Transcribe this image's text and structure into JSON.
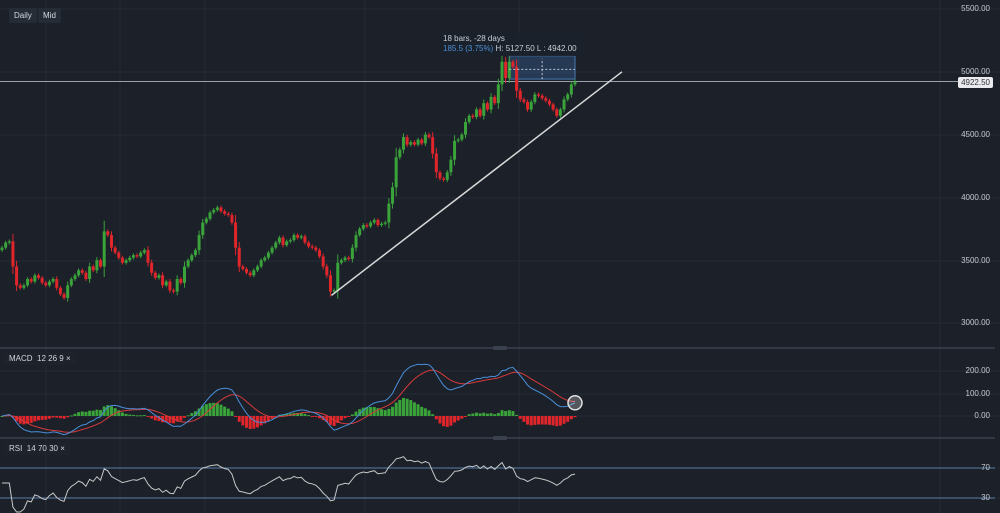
{
  "toolbar": {
    "timeframe": "Daily",
    "price_type": "Mid"
  },
  "price_axis": {
    "ticks": [
      "5500.00",
      "5000.00",
      "4500.00",
      "4000.00",
      "3500.00",
      "3000.00"
    ],
    "current_price": "4922.50"
  },
  "macd": {
    "label": "MACD",
    "params": [
      "12",
      "26",
      "9"
    ],
    "close": "×",
    "ticks": [
      "200.00",
      "100.00",
      "0.00"
    ]
  },
  "rsi": {
    "label": "RSI",
    "params": [
      "14",
      "70",
      "30"
    ],
    "close": "×",
    "ticks": [
      "70",
      "30"
    ]
  },
  "measure": {
    "line1": "18 bars, -28 days",
    "change": "185.5 (3.75%)",
    "hl": "H: 5127.50 L : 4942.00"
  },
  "colors": {
    "up": "#3aa33a",
    "down": "#e0262b",
    "background": "#1b2029",
    "macd_line": "#4a8fd8",
    "signal_line": "#d83a3a",
    "rsi_line": "#c8c8c8",
    "rsi_bands": "#5b7fa6",
    "trendline": "#d8d8d8"
  },
  "chart_data": {
    "type": "candlestick",
    "ylim": [
      2800,
      5500
    ],
    "closes": [
      3600,
      3640,
      3650,
      3450,
      3300,
      3280,
      3300,
      3350,
      3330,
      3380,
      3360,
      3320,
      3300,
      3330,
      3350,
      3280,
      3230,
      3200,
      3300,
      3350,
      3380,
      3420,
      3400,
      3350,
      3450,
      3420,
      3500,
      3450,
      3730,
      3700,
      3600,
      3560,
      3520,
      3480,
      3500,
      3520,
      3540,
      3530,
      3560,
      3580,
      3480,
      3400,
      3360,
      3380,
      3300,
      3330,
      3260,
      3250,
      3350,
      3320,
      3450,
      3500,
      3540,
      3580,
      3700,
      3800,
      3830,
      3880,
      3900,
      3920,
      3890,
      3870,
      3860,
      3800,
      3600,
      3450,
      3430,
      3400,
      3380,
      3420,
      3450,
      3500,
      3520,
      3560,
      3600,
      3640,
      3680,
      3620,
      3650,
      3660,
      3700,
      3680,
      3690,
      3640,
      3610,
      3600,
      3580,
      3530,
      3450,
      3380,
      3250,
      3260,
      3480,
      3500,
      3520,
      3510,
      3600,
      3700,
      3750,
      3780,
      3770,
      3800,
      3820,
      3780,
      3790,
      3800,
      3950,
      4080,
      4320,
      4380,
      4480,
      4420,
      4440,
      4420,
      4460,
      4430,
      4500,
      4480,
      4350,
      4200,
      4150,
      4140,
      4200,
      4300,
      4450,
      4460,
      4500,
      4600,
      4650,
      4640,
      4700,
      4650,
      4750,
      4700,
      4800,
      4750,
      4900,
      5080,
      4950,
      5080,
      5040,
      4850,
      4780,
      4760,
      4700,
      4760,
      4820,
      4810,
      4790,
      4770,
      4740,
      4700,
      4650,
      4700,
      4780,
      4820,
      4900,
      4922.5
    ],
    "trendline": {
      "start_price": 3220,
      "end_price": 5000
    },
    "measure_range": {
      "high": 5127.5,
      "low": 4942.0,
      "bars": 18
    }
  }
}
